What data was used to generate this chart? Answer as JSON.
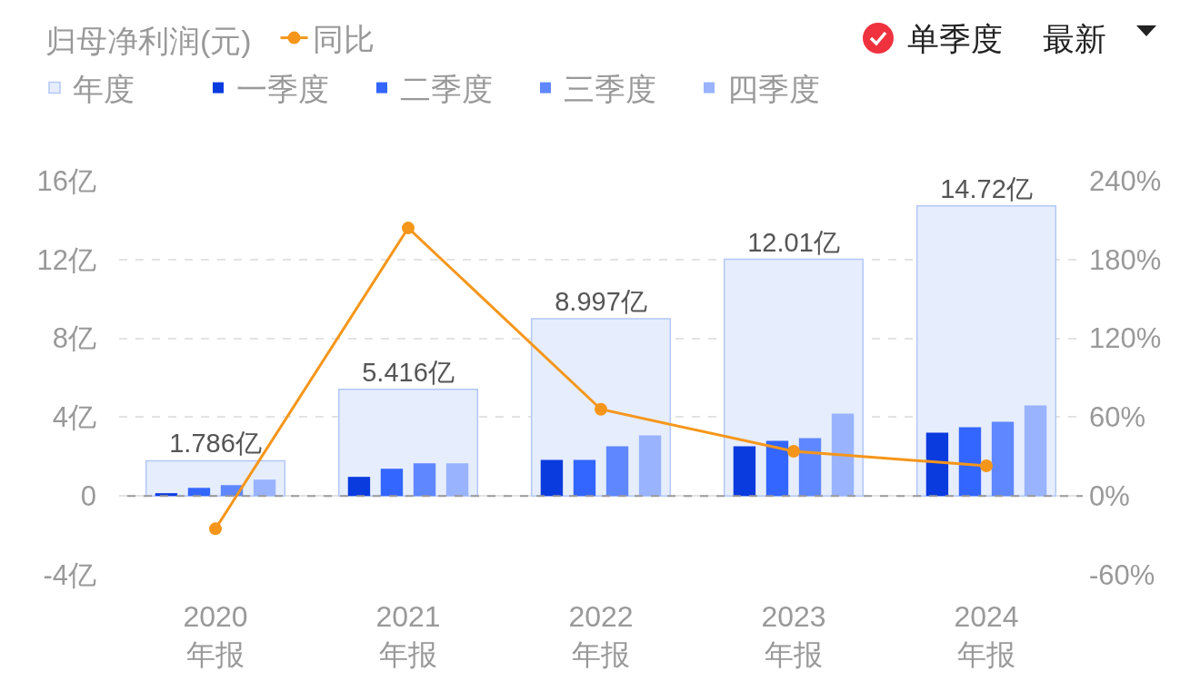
{
  "chart_data": {
    "type": "bar",
    "legend_title": "归母净利润(元)",
    "categories": [
      "2020\n年报",
      "2021\n年报",
      "2022\n年报",
      "2023\n年报",
      "2024\n年报"
    ],
    "series": [
      {
        "name": "年度",
        "color": "#e6edfd",
        "values": [
          1.786,
          5.416,
          8.997,
          12.01,
          14.72
        ],
        "value_labels": [
          "1.786亿",
          "5.416亿",
          "8.997亿",
          "12.01亿",
          "14.72亿"
        ]
      },
      {
        "name": "一季度",
        "color": "#0a3bdf",
        "values": [
          0.14,
          0.97,
          1.83,
          2.52,
          3.21
        ]
      },
      {
        "name": "二季度",
        "color": "#3366ff",
        "values": [
          0.41,
          1.38,
          1.83,
          2.8,
          3.49
        ]
      },
      {
        "name": "三季度",
        "color": "#5f87ff",
        "values": [
          0.55,
          1.66,
          2.52,
          2.93,
          3.76
        ]
      },
      {
        "name": "四季度",
        "color": "#99b3ff",
        "values": [
          0.83,
          1.66,
          3.07,
          4.18,
          4.59
        ]
      },
      {
        "name": "同比",
        "type": "line",
        "axis": "y2",
        "color": "#f5961a",
        "values": [
          -25,
          204,
          66,
          34,
          23
        ]
      }
    ],
    "marker": "circle",
    "ylim": [
      -4,
      16
    ],
    "yticks": [
      {
        "value": -4,
        "label": "-4亿"
      },
      0,
      {
        "value": 4,
        "label": "4亿"
      },
      {
        "value": 8,
        "label": "8亿"
      },
      {
        "value": 12,
        "label": "12亿"
      },
      {
        "value": 16,
        "label": "16亿"
      }
    ],
    "y2lim": [
      -60,
      240
    ],
    "y2ticks": [
      {
        "value": -60,
        "label": "-60%"
      },
      {
        "value": 0,
        "label": "0%"
      },
      {
        "value": 60,
        "label": "60%"
      },
      {
        "value": 120,
        "label": "120%"
      },
      {
        "value": 180,
        "label": "180%"
      },
      {
        "value": 240,
        "label": "240%"
      }
    ],
    "ref_lines": [
      {
        "axis": "y",
        "value": 0,
        "color": "#999999",
        "line_style": "dashed"
      }
    ],
    "grid": "y",
    "legend": "top left",
    "annotations": [
      "单季度",
      "最新"
    ]
  }
}
